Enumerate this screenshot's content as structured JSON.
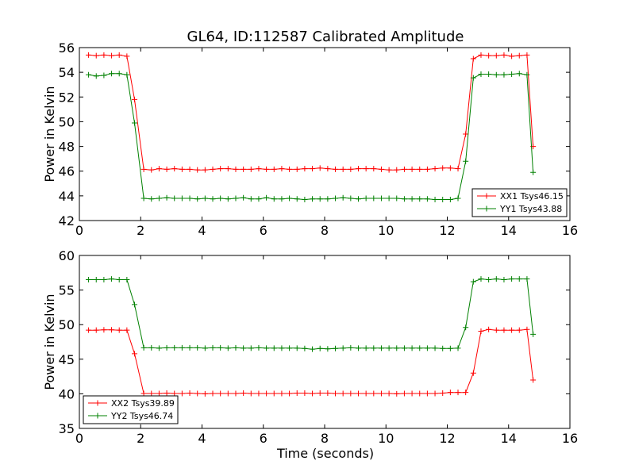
{
  "figure": {
    "title": "GL64, ID:112587 Calibrated Amplitude",
    "xlabel": "Time (seconds)"
  },
  "chart_data": [
    {
      "type": "line",
      "title": "GL64, ID:112587 Calibrated Amplitude",
      "xlabel": "",
      "ylabel": "Power in Kelvin",
      "xlim": [
        0,
        16
      ],
      "ylim": [
        42,
        56
      ],
      "xticks": [
        0,
        2,
        4,
        6,
        8,
        10,
        12,
        14,
        16
      ],
      "yticks": [
        42,
        44,
        46,
        48,
        50,
        52,
        54,
        56
      ],
      "grid": false,
      "legend": "lower-right",
      "marker": "+",
      "x": [
        0.3,
        0.55,
        0.8,
        1.05,
        1.3,
        1.55,
        1.8,
        2.1,
        2.35,
        2.6,
        2.85,
        3.1,
        3.35,
        3.6,
        3.85,
        4.1,
        4.35,
        4.6,
        4.85,
        5.1,
        5.35,
        5.6,
        5.85,
        6.1,
        6.35,
        6.6,
        6.85,
        7.1,
        7.35,
        7.6,
        7.85,
        8.1,
        8.35,
        8.6,
        8.85,
        9.1,
        9.35,
        9.6,
        9.85,
        10.1,
        10.35,
        10.6,
        10.85,
        11.1,
        11.35,
        11.6,
        11.85,
        12.1,
        12.35,
        12.6,
        12.85,
        13.1,
        13.35,
        13.6,
        13.85,
        14.1,
        14.35,
        14.6,
        14.8
      ],
      "series": [
        {
          "name": "XX1 Tsys46.15",
          "color": "#ff0000",
          "values": [
            55.4,
            55.35,
            55.4,
            55.35,
            55.4,
            55.3,
            51.8,
            46.15,
            46.1,
            46.2,
            46.15,
            46.2,
            46.15,
            46.15,
            46.1,
            46.1,
            46.15,
            46.2,
            46.2,
            46.15,
            46.15,
            46.15,
            46.2,
            46.15,
            46.15,
            46.2,
            46.15,
            46.15,
            46.2,
            46.2,
            46.25,
            46.2,
            46.15,
            46.15,
            46.15,
            46.2,
            46.2,
            46.2,
            46.15,
            46.1,
            46.1,
            46.15,
            46.15,
            46.15,
            46.15,
            46.2,
            46.25,
            46.25,
            46.2,
            49.0,
            55.1,
            55.4,
            55.35,
            55.35,
            55.4,
            55.3,
            55.35,
            55.4,
            48.0
          ]
        },
        {
          "name": "YY1 Tsys43.88",
          "color": "#008000",
          "values": [
            53.8,
            53.7,
            53.75,
            53.9,
            53.9,
            53.8,
            49.9,
            43.8,
            43.75,
            43.8,
            43.85,
            43.8,
            43.8,
            43.8,
            43.75,
            43.8,
            43.75,
            43.8,
            43.75,
            43.8,
            43.85,
            43.75,
            43.75,
            43.85,
            43.75,
            43.75,
            43.8,
            43.75,
            43.7,
            43.75,
            43.75,
            43.75,
            43.8,
            43.85,
            43.8,
            43.75,
            43.8,
            43.8,
            43.8,
            43.8,
            43.8,
            43.75,
            43.75,
            43.75,
            43.75,
            43.7,
            43.7,
            43.7,
            43.8,
            46.8,
            53.55,
            53.85,
            53.85,
            53.8,
            53.8,
            53.85,
            53.9,
            53.8,
            45.9
          ]
        }
      ]
    },
    {
      "type": "line",
      "title": "",
      "xlabel": "Time (seconds)",
      "ylabel": "Power in Kelvin",
      "xlim": [
        0,
        16
      ],
      "ylim": [
        35,
        60
      ],
      "xticks": [
        0,
        2,
        4,
        6,
        8,
        10,
        12,
        14,
        16
      ],
      "yticks": [
        35,
        40,
        45,
        50,
        55,
        60
      ],
      "grid": false,
      "legend": "lower-left",
      "marker": "+",
      "x": [
        0.3,
        0.55,
        0.8,
        1.05,
        1.3,
        1.55,
        1.8,
        2.1,
        2.35,
        2.6,
        2.85,
        3.1,
        3.35,
        3.6,
        3.85,
        4.1,
        4.35,
        4.6,
        4.85,
        5.1,
        5.35,
        5.6,
        5.85,
        6.1,
        6.35,
        6.6,
        6.85,
        7.1,
        7.35,
        7.6,
        7.85,
        8.1,
        8.35,
        8.6,
        8.85,
        9.1,
        9.35,
        9.6,
        9.85,
        10.1,
        10.35,
        10.6,
        10.85,
        11.1,
        11.35,
        11.6,
        11.85,
        12.1,
        12.35,
        12.6,
        12.85,
        13.1,
        13.35,
        13.6,
        13.85,
        14.1,
        14.35,
        14.6,
        14.8
      ],
      "series": [
        {
          "name": "XX2 Tsys39.89",
          "color": "#ff0000",
          "values": [
            49.2,
            49.2,
            49.25,
            49.25,
            49.2,
            49.2,
            45.8,
            40.05,
            40.05,
            40.05,
            40.1,
            40.05,
            40.05,
            40.1,
            40.05,
            40.0,
            40.05,
            40.05,
            40.05,
            40.05,
            40.1,
            40.05,
            40.05,
            40.05,
            40.05,
            40.05,
            40.05,
            40.1,
            40.1,
            40.05,
            40.1,
            40.1,
            40.05,
            40.05,
            40.05,
            40.05,
            40.05,
            40.05,
            40.05,
            40.05,
            40.0,
            40.05,
            40.05,
            40.05,
            40.05,
            40.05,
            40.1,
            40.2,
            40.2,
            40.2,
            43.0,
            49.05,
            49.3,
            49.2,
            49.2,
            49.2,
            49.2,
            49.3,
            42.0
          ]
        },
        {
          "name": "YY2 Tsys46.74",
          "color": "#008000",
          "values": [
            56.5,
            56.5,
            56.5,
            56.6,
            56.5,
            56.5,
            52.9,
            46.65,
            46.65,
            46.6,
            46.65,
            46.65,
            46.65,
            46.65,
            46.65,
            46.6,
            46.65,
            46.65,
            46.6,
            46.65,
            46.6,
            46.6,
            46.65,
            46.6,
            46.6,
            46.6,
            46.6,
            46.6,
            46.55,
            46.45,
            46.55,
            46.5,
            46.55,
            46.6,
            46.65,
            46.6,
            46.6,
            46.6,
            46.6,
            46.6,
            46.6,
            46.6,
            46.6,
            46.6,
            46.6,
            46.6,
            46.55,
            46.55,
            46.6,
            49.6,
            56.2,
            56.6,
            56.5,
            56.6,
            56.5,
            56.6,
            56.6,
            56.6,
            48.6
          ]
        }
      ]
    }
  ]
}
